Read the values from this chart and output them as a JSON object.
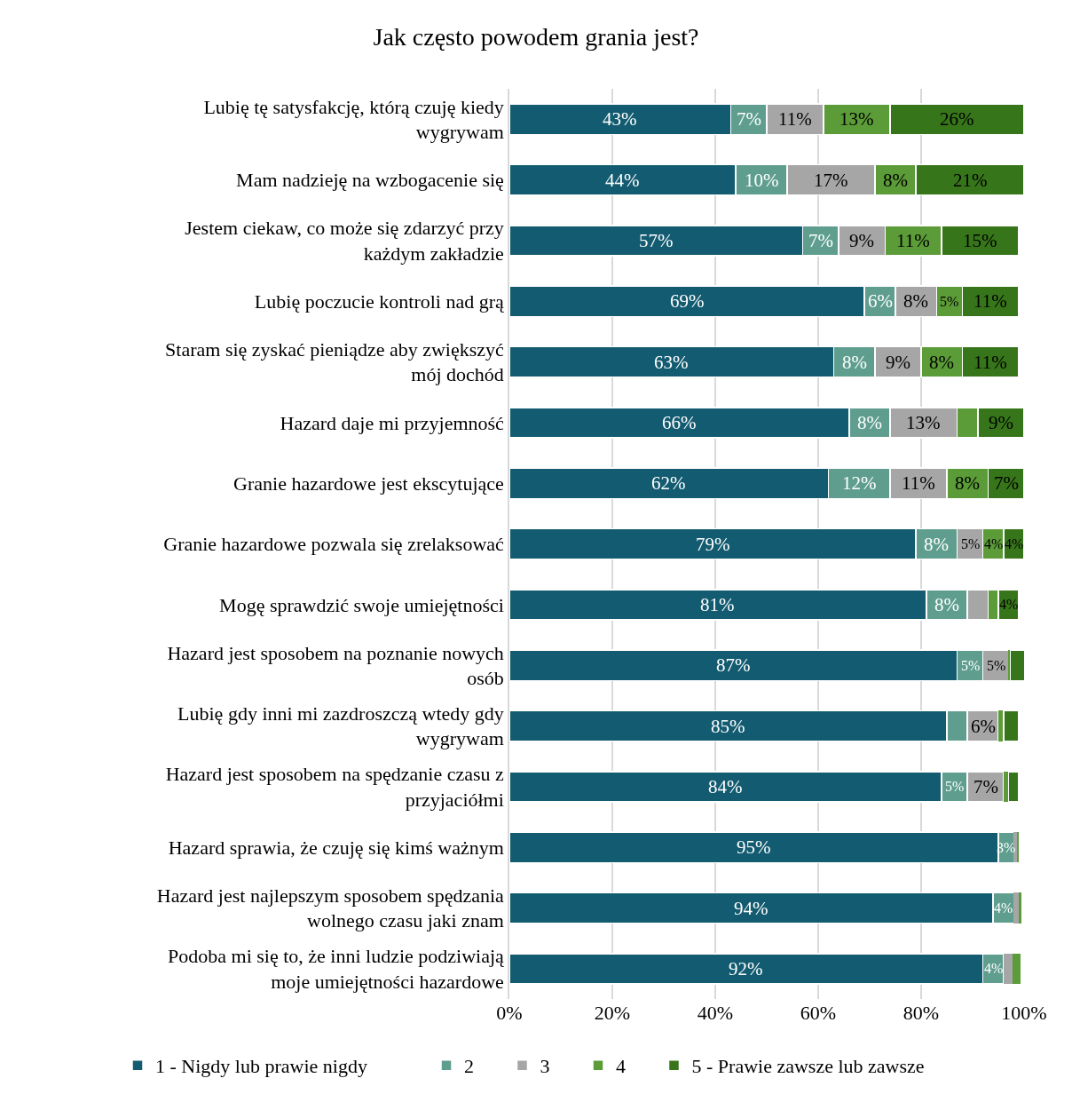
{
  "chart_data": {
    "type": "bar",
    "orientation": "horizontal",
    "stacked": true,
    "title": "Jak często powodem grania jest?",
    "categories": [
      "Lubię tę satysfakcję, którą czuję kiedy wygrywam",
      "Mam nadzieję na wzbogacenie się",
      "Jestem ciekaw, co może się zdarzyć przy każdym zakładzie",
      "Lubię poczucie kontroli nad grą",
      "Staram się zyskać pieniądze aby zwiększyć mój dochód",
      "Hazard daje mi przyjemność",
      "Granie hazardowe jest ekscytujące",
      "Granie hazardowe pozwala się zrelaksować",
      "Mogę sprawdzić swoje umiejętności",
      "Hazard jest sposobem na poznanie nowych osób",
      "Lubię gdy inni mi zazdroszczą wtedy gdy wygrywam",
      "Hazard jest sposobem na spędzanie czasu z przyjaciółmi",
      "Hazard sprawia, że czuję się kimś ważnym",
      "Hazard jest najlepszym sposobem spędzania wolnego czasu jaki znam",
      "Podoba mi się to, że inni ludzie podziwiają moje umiejętności hazardowe"
    ],
    "series": [
      {
        "name": "1 - Nigdy lub prawie nigdy",
        "color": "#135b70",
        "values": [
          43,
          44,
          57,
          69,
          63,
          66,
          62,
          79,
          81,
          87,
          85,
          84,
          95,
          94,
          92
        ],
        "value_labels": [
          "43%",
          "44%",
          "57%",
          "69%",
          "63%",
          "66%",
          "62%",
          "79%",
          "81%",
          "87%",
          "85%",
          "84%",
          "95%",
          "94%",
          "92%"
        ]
      },
      {
        "name": "2",
        "color": "#5f9e8e",
        "values": [
          7,
          10,
          7,
          6,
          8,
          8,
          12,
          8,
          8,
          5,
          4,
          5,
          3,
          4,
          4
        ],
        "value_labels": [
          "7%",
          "10%",
          "7%",
          "6%",
          "8%",
          "8%",
          "12%",
          "8%",
          "8%",
          "5%",
          null,
          "5%",
          "3%",
          "4%",
          "4%"
        ]
      },
      {
        "name": "3",
        "color": "#a6a6a6",
        "values": [
          11,
          17,
          9,
          8,
          9,
          13,
          11,
          5,
          4,
          5,
          6,
          7,
          0.7,
          1,
          1.7
        ],
        "value_labels": [
          "11%",
          "17%",
          "9%",
          "8%",
          "9%",
          "13%",
          "11%",
          "5%",
          null,
          "5%",
          "6%",
          "7%",
          null,
          null,
          null
        ]
      },
      {
        "name": "4",
        "color": "#5b9b38",
        "values": [
          13,
          8,
          11,
          5,
          8,
          4,
          8,
          4,
          2,
          0.3,
          1,
          1,
          0.3,
          0.5,
          1.6
        ],
        "value_labels": [
          "13%",
          "8%",
          "11%",
          "5%",
          "8%",
          null,
          "8%",
          "4%",
          null,
          null,
          null,
          null,
          null,
          null,
          null
        ]
      },
      {
        "name": "5 - Prawie zawsze lub zawsze",
        "color": "#37751a",
        "values": [
          26,
          21,
          15,
          11,
          11,
          9,
          7,
          4,
          4,
          3,
          3,
          2,
          null,
          null,
          null
        ],
        "value_labels": [
          "26%",
          "21%",
          "15%",
          "11%",
          "11%",
          "9%",
          "7%",
          "4%",
          "4%",
          null,
          null,
          null,
          null,
          null,
          null
        ]
      }
    ],
    "xlim": [
      0,
      100
    ],
    "xticks": [
      {
        "value": 0,
        "label": "0%"
      },
      {
        "value": 20,
        "label": "20%"
      },
      {
        "value": 40,
        "label": "40%"
      },
      {
        "value": 60,
        "label": "60%"
      },
      {
        "value": 80,
        "label": "80%"
      },
      {
        "value": 100,
        "label": "100%"
      }
    ],
    "grid": "x",
    "legend": "bottom"
  }
}
